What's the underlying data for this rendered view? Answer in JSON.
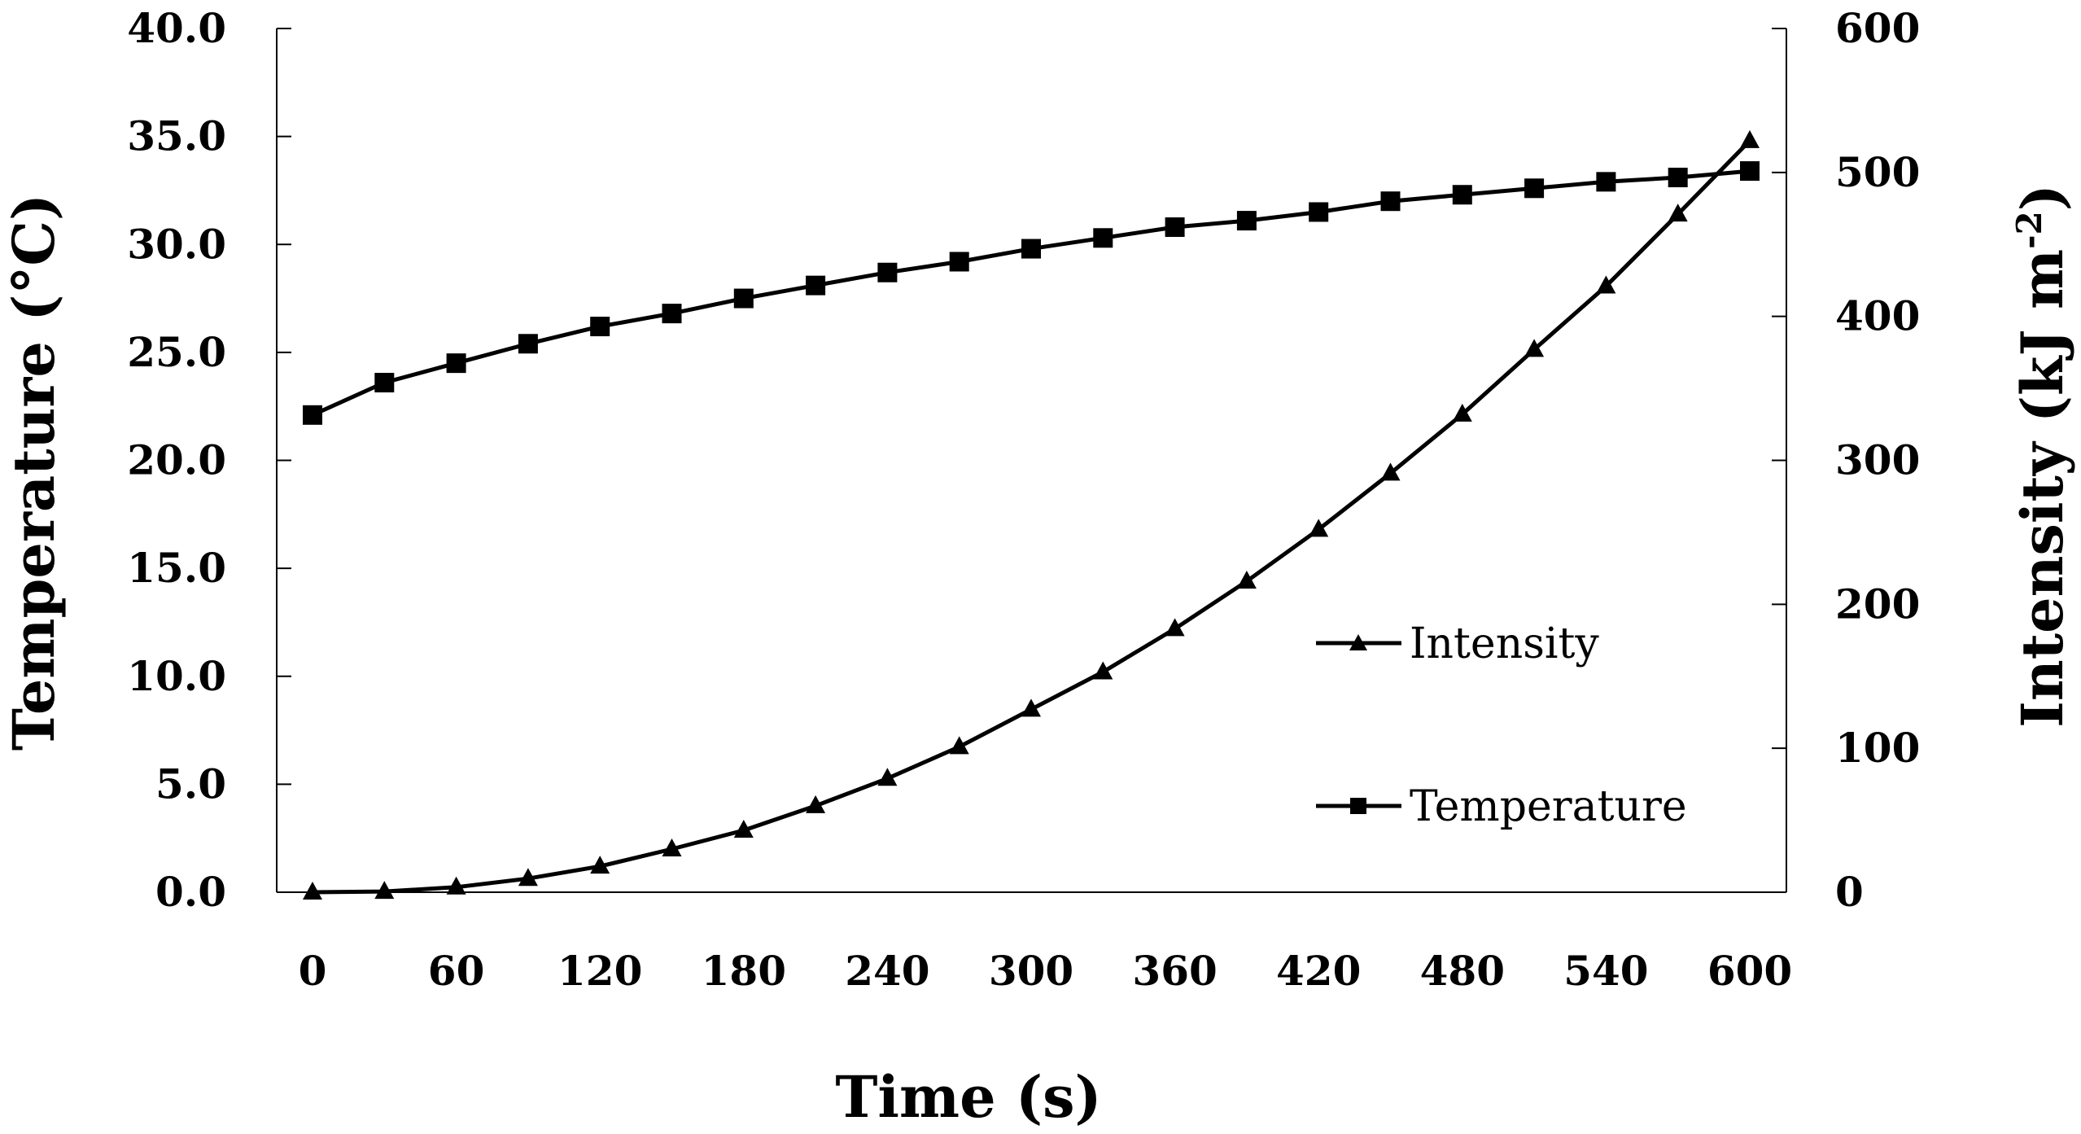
{
  "chart_data": {
    "type": "line",
    "title": "",
    "xlabel": "Time (s)",
    "ylabel": "Temperature (°C)",
    "y2label_main": "Intensity (kJ m",
    "y2label_sup": "-2",
    "y2label_close": ")",
    "xlim": [
      0,
      600
    ],
    "ylim": [
      0,
      40
    ],
    "y2lim": [
      0,
      600
    ],
    "x_ticks": [
      "0",
      "60",
      "120",
      "180",
      "240",
      "300",
      "360",
      "420",
      "480",
      "540",
      "600"
    ],
    "y_ticks": [
      "0.0",
      "5.0",
      "10.0",
      "15.0",
      "20.0",
      "25.0",
      "30.0",
      "35.0",
      "40.0"
    ],
    "y2_ticks": [
      "0",
      "100",
      "200",
      "300",
      "400",
      "500",
      "600"
    ],
    "x": [
      0,
      30,
      60,
      90,
      120,
      150,
      180,
      210,
      240,
      270,
      300,
      330,
      360,
      390,
      420,
      450,
      480,
      510,
      540,
      570,
      600
    ],
    "series": [
      {
        "name": "Intensity",
        "axis": "right",
        "marker": "triangle",
        "values": [
          0,
          0.5,
          3.5,
          9.5,
          18,
          30,
          43,
          60,
          79,
          101,
          127,
          153,
          183,
          216,
          252,
          291,
          332,
          377,
          421,
          471,
          522
        ]
      },
      {
        "name": "Temperature",
        "axis": "left",
        "marker": "square",
        "values": [
          22.1,
          23.6,
          24.5,
          25.4,
          26.2,
          26.8,
          27.5,
          28.1,
          28.7,
          29.2,
          29.8,
          30.3,
          30.8,
          31.1,
          31.5,
          32.0,
          32.3,
          32.6,
          32.9,
          33.1,
          33.4
        ]
      }
    ],
    "legend": {
      "placement": "inside-right"
    }
  }
}
